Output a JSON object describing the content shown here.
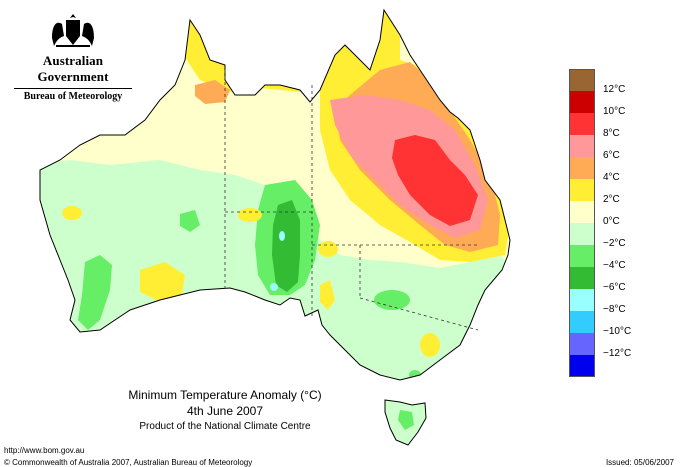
{
  "header": {
    "government": "Australian Government",
    "bureau": "Bureau of Meteorology"
  },
  "title": {
    "line1": "Minimum Temperature Anomaly (°C)",
    "line2": "4th June 2007",
    "line3": "Product of the National Climate Centre"
  },
  "footer": {
    "url": "http://www.bom.gov.au",
    "copyright": "© Commonwealth of Australia 2007, Australian Bureau of Meteorology",
    "issued": "Issued: 05/06/2007"
  },
  "legend": [
    {
      "label": "12°C",
      "color": "#996633"
    },
    {
      "label": "10°C",
      "color": "#cc0000"
    },
    {
      "label": "8°C",
      "color": "#ff3333"
    },
    {
      "label": "6°C",
      "color": "#ff9999"
    },
    {
      "label": "4°C",
      "color": "#ffaa55"
    },
    {
      "label": "2°C",
      "color": "#ffee33"
    },
    {
      "label": "0°C",
      "color": "#ffffcc"
    },
    {
      "label": "−2°C",
      "color": "#ccffcc"
    },
    {
      "label": "−4°C",
      "color": "#66ee66"
    },
    {
      "label": "−6°C",
      "color": "#33bb33"
    },
    {
      "label": "−8°C",
      "color": "#99ffff"
    },
    {
      "label": "−10°C",
      "color": "#33ccff"
    },
    {
      "label": "−12°C",
      "color": "#6666ff"
    },
    {
      "label": "",
      "color": "#0000ee"
    }
  ]
}
